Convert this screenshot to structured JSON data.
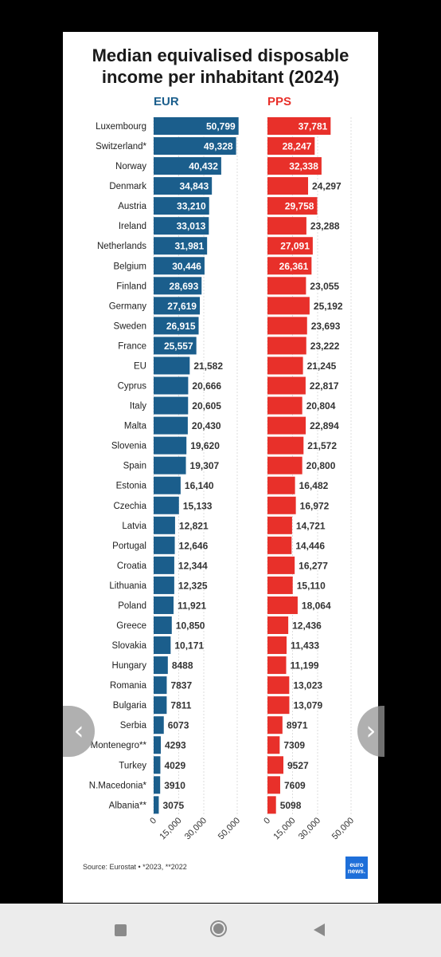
{
  "title_line1": "Median equivalised disposable",
  "title_line2": "income per inhabitant (2024)",
  "source": "Source: Eurostat • *2023, **2022",
  "logo_line1": "euro",
  "logo_line2": "news.",
  "colors": {
    "eur": "#1b5e8c",
    "pps": "#e8302a",
    "eur_head": "#1b5e8c",
    "pps_head": "#e8302a"
  },
  "chart_data": [
    {
      "type": "bar",
      "orientation": "horizontal",
      "header": "EUR",
      "categories": [
        "Luxembourg",
        "Switzerland*",
        "Norway",
        "Denmark",
        "Austria",
        "Ireland",
        "Netherlands",
        "Belgium",
        "Finland",
        "Germany",
        "Sweden",
        "France",
        "EU",
        "Cyprus",
        "Italy",
        "Malta",
        "Slovenia",
        "Spain",
        "Estonia",
        "Czechia",
        "Latvia",
        "Portugal",
        "Croatia",
        "Lithuania",
        "Poland",
        "Greece",
        "Slovakia",
        "Hungary",
        "Romania",
        "Bulgaria",
        "Serbia",
        "Montenegro**",
        "Turkey",
        "N.Macedonia*",
        "Albania**"
      ],
      "values": [
        50799,
        49328,
        40432,
        34843,
        33210,
        33013,
        31981,
        30446,
        28693,
        27619,
        26915,
        25557,
        21582,
        20666,
        20605,
        20430,
        19620,
        19307,
        16140,
        15133,
        12821,
        12646,
        12344,
        12325,
        11921,
        10850,
        10171,
        8488,
        7837,
        7811,
        6073,
        4293,
        4029,
        3910,
        3075
      ],
      "labels": [
        "50,799",
        "49,328",
        "40,432",
        "34,843",
        "33,210",
        "33,013",
        "31,981",
        "30,446",
        "28,693",
        "27,619",
        "26,915",
        "25,557",
        "21,582",
        "20,666",
        "20,605",
        "20,430",
        "19,620",
        "19,307",
        "16,140",
        "15,133",
        "12,821",
        "12,646",
        "12,344",
        "12,325",
        "11,921",
        "10,850",
        "10,171",
        "8488",
        "7837",
        "7811",
        "6073",
        "4293",
        "4029",
        "3910",
        "3075"
      ],
      "xlim": [
        0,
        50000
      ],
      "xticks": [
        "0",
        "15,000",
        "30,000",
        "50,000"
      ],
      "xtick_values": [
        0,
        15000,
        30000,
        50000
      ]
    },
    {
      "type": "bar",
      "orientation": "horizontal",
      "header": "PPS",
      "values": [
        37781,
        28247,
        32338,
        24297,
        29758,
        23288,
        27091,
        26361,
        23055,
        25192,
        23693,
        23222,
        21245,
        22817,
        20804,
        22894,
        21572,
        20800,
        16482,
        16972,
        14721,
        14446,
        16277,
        15110,
        18064,
        12436,
        11433,
        11199,
        13023,
        13079,
        8971,
        7309,
        9527,
        7609,
        5098
      ],
      "labels": [
        "37,781",
        "28,247",
        "32,338",
        "24,297",
        "29,758",
        "23,288",
        "27,091",
        "26,361",
        "23,055",
        "25,192",
        "23,693",
        "23,222",
        "21,245",
        "22,817",
        "20,804",
        "22,894",
        "21,572",
        "20,800",
        "16,482",
        "16,972",
        "14,721",
        "14,446",
        "16,277",
        "15,110",
        "18,064",
        "12,436",
        "11,433",
        "11,199",
        "13,023",
        "13,079",
        "8971",
        "7309",
        "9527",
        "7609",
        "5098"
      ],
      "xlim": [
        0,
        50000
      ],
      "xticks": [
        "0",
        "15,000",
        "30,000",
        "50,000"
      ],
      "xtick_values": [
        0,
        15000,
        30000,
        50000
      ]
    }
  ]
}
